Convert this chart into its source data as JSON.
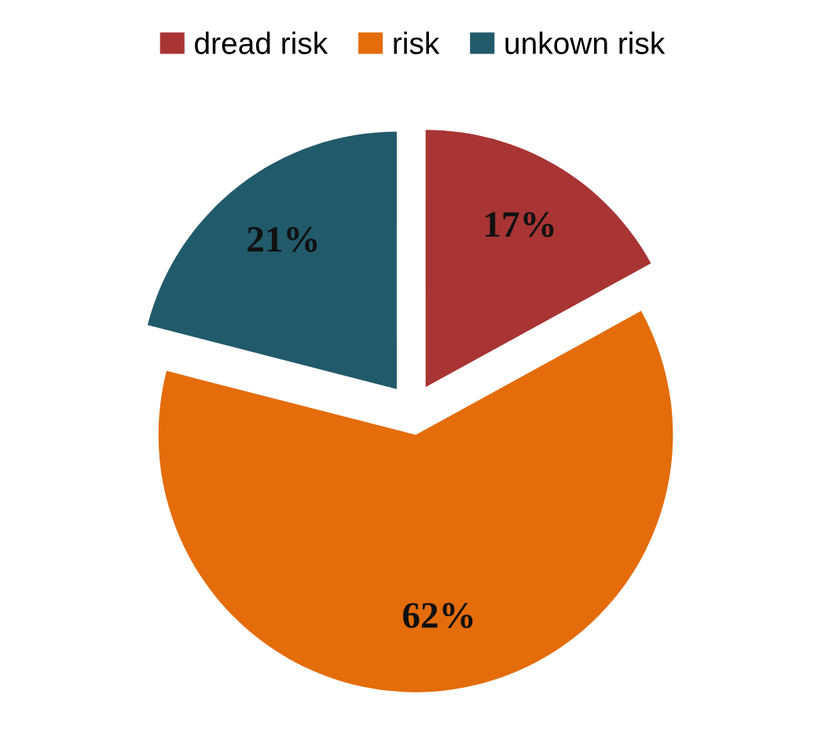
{
  "chart_data": {
    "type": "pie",
    "categories": [
      "dread risk",
      "risk",
      "unkown risk"
    ],
    "values": [
      17,
      62,
      21
    ],
    "colors": [
      "#a83434",
      "#e46c0a",
      "#215a6a"
    ],
    "value_labels": [
      "17%",
      "62%",
      "21%"
    ],
    "legend": "top"
  }
}
